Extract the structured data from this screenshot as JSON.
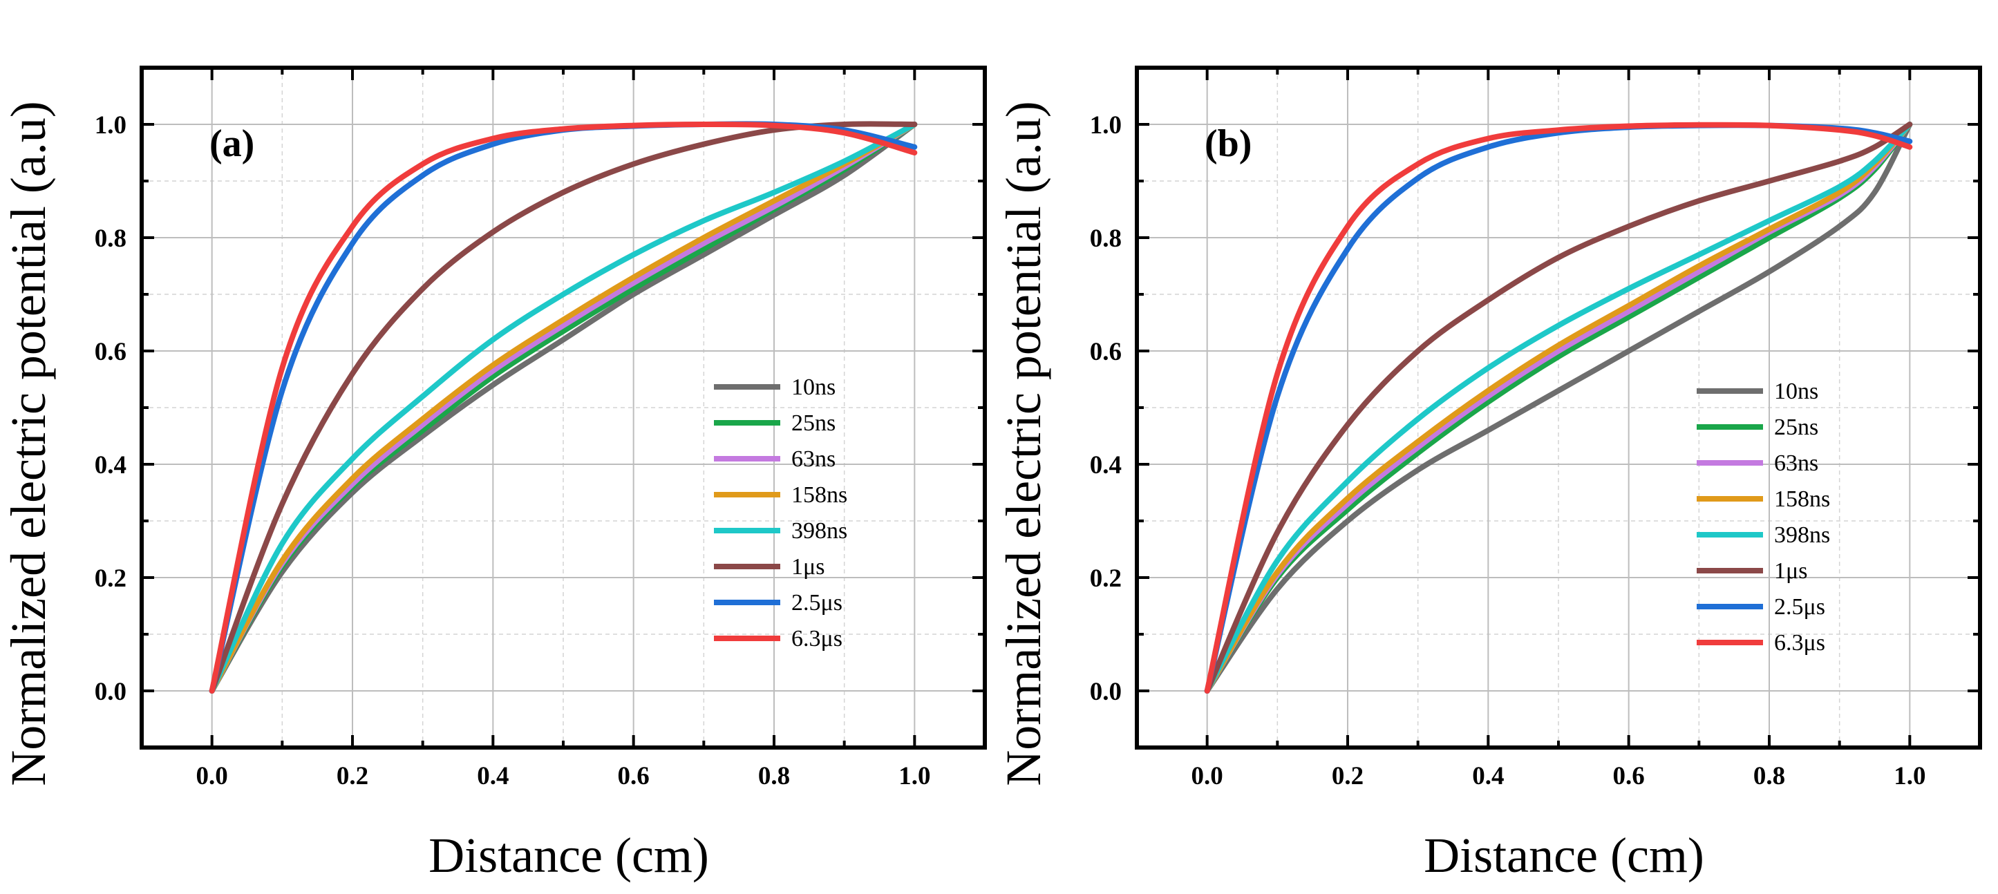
{
  "chart_data": [
    {
      "type": "line",
      "panel_label": "(a)",
      "xlabel": "Distance (cm)",
      "ylabel": "Normalized electric potential (a.u)",
      "xlim": [
        -0.1,
        1.1
      ],
      "ylim": [
        -0.1,
        1.1
      ],
      "xticks": [
        "0.0",
        "0.2",
        "0.4",
        "0.6",
        "0.8",
        "1.0"
      ],
      "yticks": [
        "0.0",
        "0.2",
        "0.4",
        "0.6",
        "0.8",
        "1.0"
      ],
      "grid": true,
      "legend_position": "right-middle",
      "x": [
        0.0,
        0.1,
        0.2,
        0.3,
        0.4,
        0.5,
        0.6,
        0.7,
        0.8,
        0.9,
        1.0
      ],
      "series": [
        {
          "name": "10ns",
          "color": "#6e6e6e",
          "values": [
            0.0,
            0.21,
            0.35,
            0.45,
            0.54,
            0.62,
            0.7,
            0.77,
            0.84,
            0.91,
            1.0
          ]
        },
        {
          "name": "25ns",
          "color": "#1aa64a",
          "values": [
            0.0,
            0.22,
            0.36,
            0.46,
            0.555,
            0.635,
            0.71,
            0.78,
            0.85,
            0.92,
            1.0
          ]
        },
        {
          "name": "63ns",
          "color": "#c47ae0",
          "values": [
            0.0,
            0.225,
            0.365,
            0.47,
            0.565,
            0.645,
            0.72,
            0.79,
            0.855,
            0.925,
            1.0
          ]
        },
        {
          "name": "158ns",
          "color": "#e09a1a",
          "values": [
            0.0,
            0.23,
            0.375,
            0.48,
            0.575,
            0.655,
            0.73,
            0.8,
            0.865,
            0.93,
            1.0
          ]
        },
        {
          "name": "398ns",
          "color": "#1ec8c8",
          "values": [
            0.0,
            0.26,
            0.41,
            0.52,
            0.62,
            0.7,
            0.77,
            0.83,
            0.88,
            0.935,
            1.0
          ]
        },
        {
          "name": "1μs",
          "color": "#8b4848",
          "values": [
            0.0,
            0.33,
            0.56,
            0.71,
            0.81,
            0.88,
            0.93,
            0.965,
            0.99,
            1.0,
            1.0
          ]
        },
        {
          "name": "2.5μs",
          "color": "#1f6fd6",
          "values": [
            0.0,
            0.53,
            0.79,
            0.91,
            0.965,
            0.99,
            0.997,
            1.0,
            1.0,
            0.99,
            0.96
          ]
        },
        {
          "name": "6.3μs",
          "color": "#f03c3c",
          "values": [
            0.0,
            0.57,
            0.82,
            0.93,
            0.975,
            0.992,
            0.998,
            1.0,
            0.998,
            0.985,
            0.95
          ]
        }
      ]
    },
    {
      "type": "line",
      "panel_label": "(b)",
      "xlabel": "Distance (cm)",
      "ylabel": "Normalized electric potential (a.u)",
      "xlim": [
        -0.1,
        1.1
      ],
      "ylim": [
        -0.1,
        1.1
      ],
      "xticks": [
        "0.0",
        "0.2",
        "0.4",
        "0.6",
        "0.8",
        "1.0"
      ],
      "yticks": [
        "0.0",
        "0.2",
        "0.4",
        "0.6",
        "0.8",
        "1.0"
      ],
      "grid": true,
      "legend_position": "right-middle",
      "x": [
        0.0,
        0.1,
        0.2,
        0.3,
        0.4,
        0.5,
        0.6,
        0.7,
        0.8,
        0.9,
        0.95,
        1.0
      ],
      "series": [
        {
          "name": "10ns",
          "color": "#6e6e6e",
          "values": [
            0.0,
            0.18,
            0.3,
            0.39,
            0.46,
            0.53,
            0.6,
            0.67,
            0.74,
            0.82,
            0.88,
            1.0
          ]
        },
        {
          "name": "25ns",
          "color": "#1aa64a",
          "values": [
            0.0,
            0.2,
            0.32,
            0.42,
            0.51,
            0.59,
            0.66,
            0.73,
            0.8,
            0.87,
            0.92,
            1.0
          ]
        },
        {
          "name": "63ns",
          "color": "#c47ae0",
          "values": [
            0.0,
            0.205,
            0.33,
            0.43,
            0.52,
            0.6,
            0.67,
            0.74,
            0.81,
            0.875,
            0.925,
            1.0
          ]
        },
        {
          "name": "158ns",
          "color": "#e09a1a",
          "values": [
            0.0,
            0.21,
            0.34,
            0.44,
            0.53,
            0.61,
            0.68,
            0.75,
            0.815,
            0.88,
            0.93,
            1.0
          ]
        },
        {
          "name": "398ns",
          "color": "#1ec8c8",
          "values": [
            0.0,
            0.23,
            0.37,
            0.48,
            0.57,
            0.645,
            0.71,
            0.77,
            0.83,
            0.89,
            0.935,
            1.0
          ]
        },
        {
          "name": "1μs",
          "color": "#8b4848",
          "values": [
            0.0,
            0.28,
            0.47,
            0.6,
            0.69,
            0.765,
            0.82,
            0.865,
            0.9,
            0.935,
            0.96,
            1.0
          ]
        },
        {
          "name": "2.5μs",
          "color": "#1f6fd6",
          "values": [
            0.0,
            0.52,
            0.78,
            0.905,
            0.96,
            0.985,
            0.995,
            0.998,
            0.998,
            0.993,
            0.985,
            0.97
          ]
        },
        {
          "name": "6.3μs",
          "color": "#f03c3c",
          "values": [
            0.0,
            0.56,
            0.82,
            0.93,
            0.975,
            0.99,
            0.997,
            0.999,
            0.998,
            0.99,
            0.98,
            0.96
          ]
        }
      ]
    }
  ]
}
